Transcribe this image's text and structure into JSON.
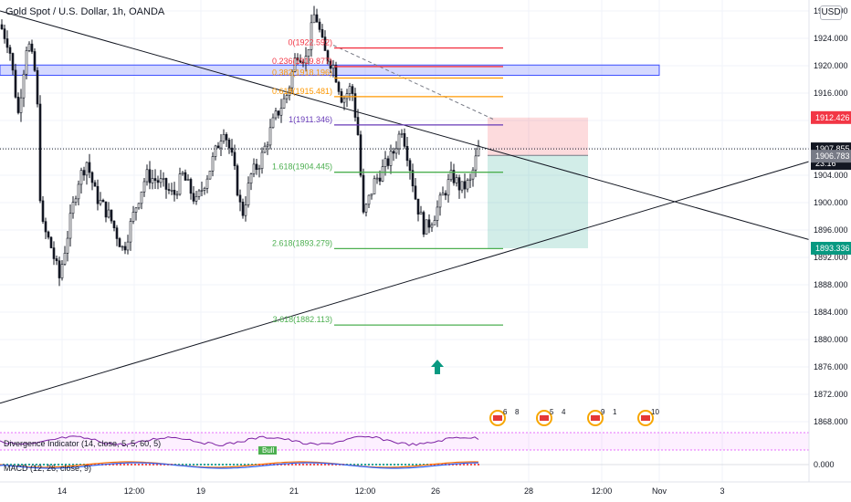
{
  "header": {
    "symbol_title": "Gold Spot / U.S. Dollar, 1h, OANDA",
    "currency_button": "USD"
  },
  "chart_data": {
    "type": "candlestick",
    "ylim": [
      1860.5,
      1929.5
    ],
    "y_ticks": [
      "1928.000",
      "1924.000",
      "1920.000",
      "1916.000",
      "1912.000",
      "1908.000",
      "1904.000",
      "1900.000",
      "1896.000",
      "1892.000",
      "1888.000",
      "1884.000",
      "1880.000",
      "1876.000",
      "1872.000",
      "1868.000"
    ],
    "x_ticks": [
      "14",
      "12:00",
      "19",
      "21",
      "12:00",
      "26",
      "28",
      "12:00",
      "Nov",
      "3"
    ],
    "price_tags": [
      {
        "value": "1912.426",
        "color": "#f23645"
      },
      {
        "value": "1907.855",
        "color": "#131722"
      },
      {
        "value": "23:16",
        "color": "#131722"
      },
      {
        "value": "1906.783",
        "color": "#787b86"
      },
      {
        "value": "1893.336",
        "color": "#089981"
      }
    ],
    "fib_levels": [
      {
        "label": "0(1922.592)",
        "value": 1922.592,
        "color": "#f23645"
      },
      {
        "label": "0.236(1919.877)",
        "value": 1919.877,
        "color": "#f23645"
      },
      {
        "label": "0.382(1918.196)",
        "value": 1918.196,
        "color": "#ff9800"
      },
      {
        "label": "0.618(1915.481)",
        "value": 1915.481,
        "color": "#ff9800"
      },
      {
        "label": "1(1911.346)",
        "value": 1911.346,
        "color": "#673ab7"
      },
      {
        "label": "1.618(1904.445)",
        "value": 1904.445,
        "color": "#4caf50"
      },
      {
        "label": "2.618(1893.279)",
        "value": 1893.279,
        "color": "#4caf50"
      },
      {
        "label": "3.618(1882.113)",
        "value": 1882.113,
        "color": "#4caf50"
      }
    ],
    "resistance_zone": {
      "low": 1918.6,
      "high": 1920.1,
      "color": "#3f51ff"
    },
    "position": {
      "entry": 1906.9,
      "stop": 1912.426,
      "target": 1893.336
    },
    "indicators": [
      {
        "label": "Divergence Indicator (14, close, 5, 5, 60, 5)",
        "badge": "Bull"
      },
      {
        "label": "MACD (12, 26, close, 9)",
        "value": "0.000"
      }
    ],
    "events": [
      "6",
      "8",
      "5",
      "4",
      "9",
      "1",
      "10"
    ]
  }
}
